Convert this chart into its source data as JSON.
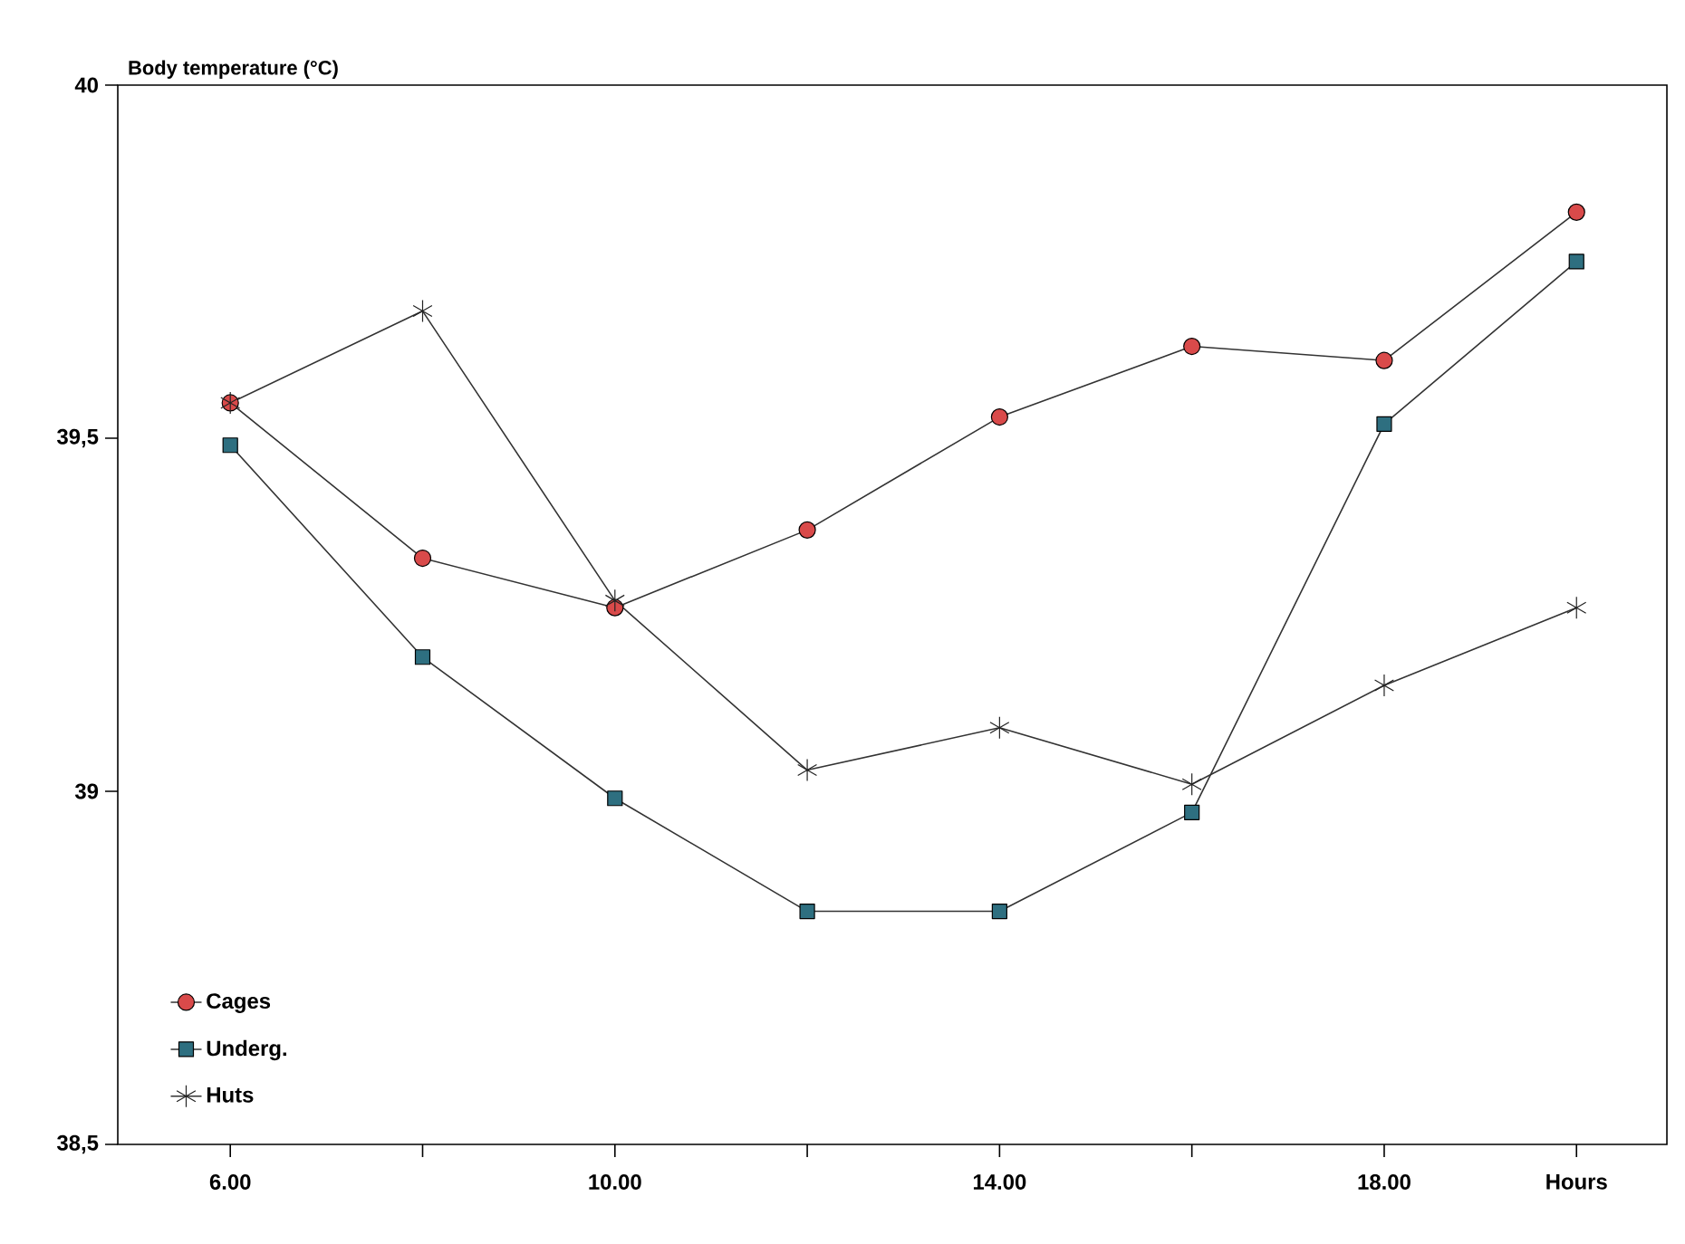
{
  "chart_data": {
    "type": "line",
    "ylabel": "Body temperature (°C)",
    "x": [
      6,
      8,
      10,
      12,
      14,
      16,
      18,
      20
    ],
    "series": [
      {
        "name": "Cages",
        "color": "#d94a4a",
        "marker": "circle",
        "values": [
          39.55,
          39.33,
          39.26,
          39.37,
          39.53,
          39.63,
          39.61,
          39.82
        ]
      },
      {
        "name": "Underg.",
        "color": "#2e6f80",
        "marker": "square",
        "values": [
          39.49,
          39.19,
          38.99,
          38.83,
          38.83,
          38.97,
          39.52,
          39.75
        ]
      },
      {
        "name": "Huts",
        "color": "#222222",
        "marker": "cross",
        "values": [
          39.55,
          39.68,
          39.27,
          39.03,
          39.09,
          39.01,
          39.15,
          39.26
        ]
      }
    ],
    "xlim": [
      4.83,
      20.94
    ],
    "ylim": [
      38.5,
      40
    ],
    "xticks": [
      {
        "value": 6,
        "label": "6.00"
      },
      {
        "value": 8,
        "label": null
      },
      {
        "value": 10,
        "label": "10.00"
      },
      {
        "value": 12,
        "label": null
      },
      {
        "value": 14,
        "label": "14.00"
      },
      {
        "value": 16,
        "label": null
      },
      {
        "value": 18,
        "label": "18.00"
      },
      {
        "value": 20,
        "label": "Hours"
      }
    ],
    "yticks": [
      {
        "value": 38.5,
        "label": "38,5"
      },
      {
        "value": 39,
        "label": "39"
      },
      {
        "value": 39.5,
        "label": "39,5"
      },
      {
        "value": 40,
        "label": "40"
      }
    ],
    "grid": false,
    "legend": "bottom left",
    "line_style": "solid"
  }
}
